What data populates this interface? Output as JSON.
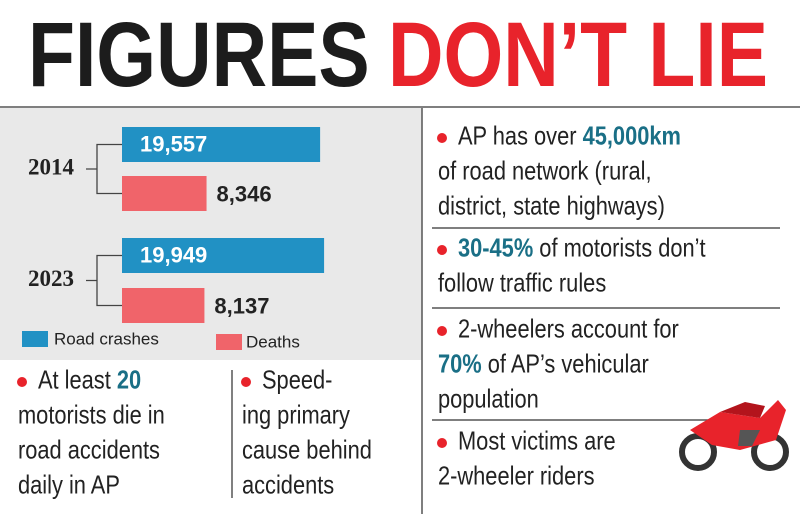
{
  "title": {
    "parts": [
      {
        "text": "FIGURES",
        "color": "#1c1c1c"
      },
      {
        "text": "DON’T LIE",
        "color": "#e8232b"
      }
    ]
  },
  "chart_data": {
    "type": "bar",
    "orientation": "horizontal",
    "categories": [
      "2014",
      "2023"
    ],
    "series": [
      {
        "name": "Road crashes",
        "color": "#2191c4",
        "values": [
          19557,
          19949
        ],
        "value_labels": [
          "19,557",
          "19,949"
        ]
      },
      {
        "name": "Deaths",
        "color": "#f0646a",
        "values": [
          8346,
          8137
        ],
        "value_labels": [
          "8,346",
          "8,137"
        ]
      }
    ]
  },
  "left_facts": [
    {
      "lines": [
        [
          "At least ",
          {
            "text": "20",
            "color": "#1a6f86"
          }
        ],
        [
          "motorists die in"
        ],
        [
          "road accidents"
        ],
        [
          "daily in AP"
        ]
      ]
    },
    {
      "lines": [
        [
          "Speed-"
        ],
        [
          "ing primary"
        ],
        [
          "cause behind"
        ],
        [
          "accidents"
        ]
      ]
    }
  ],
  "right_facts": [
    {
      "lines": [
        [
          "AP has over ",
          {
            "text": "45,000km",
            "color": "#1a6f86"
          }
        ],
        [
          "of road network (rural,"
        ],
        [
          "district, state highways)"
        ]
      ]
    },
    {
      "lines": [
        [
          {
            "text": "30-45%",
            "color": "#1a6f86"
          },
          " of motorists don’t"
        ],
        [
          "follow traffic rules"
        ]
      ]
    },
    {
      "lines": [
        [
          "2-wheelers account for"
        ],
        [
          {
            "text": "70%",
            "color": "#1a6f86"
          },
          " of AP’s vehicular"
        ],
        [
          "population"
        ]
      ]
    },
    {
      "lines": [
        [
          "Most victims are"
        ],
        [
          "2-wheeler riders"
        ]
      ]
    }
  ]
}
